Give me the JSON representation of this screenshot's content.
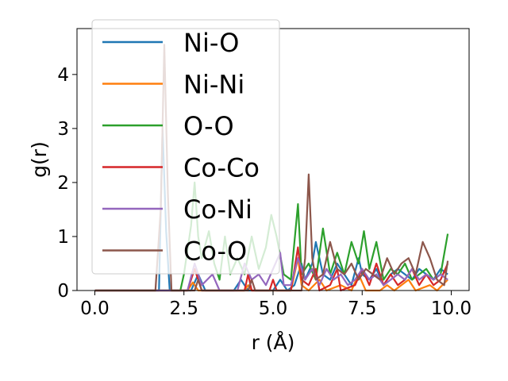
{
  "chart_data": {
    "type": "line",
    "xlabel": "r (Å)",
    "ylabel": "g(r)",
    "xlim": [
      -0.5,
      10.5
    ],
    "ylim": [
      0,
      4.85
    ],
    "xticks": [
      0.0,
      2.5,
      5.0,
      7.5,
      10.0
    ],
    "xtick_labels": [
      "0.0",
      "2.5",
      "5.0",
      "7.5",
      "10.0"
    ],
    "yticks": [
      0,
      1,
      2,
      3,
      4
    ],
    "ytick_labels": [
      "0",
      "1",
      "2",
      "3",
      "4"
    ],
    "legend_position": "upper-left",
    "grid": false,
    "series": [
      {
        "name": "Ni-O",
        "color": "#1f77b4",
        "points": [
          [
            0,
            0
          ],
          [
            1.5,
            0
          ],
          [
            1.8,
            0
          ],
          [
            1.9,
            3.0
          ],
          [
            2.0,
            1.1
          ],
          [
            2.1,
            0
          ],
          [
            2.7,
            0
          ],
          [
            2.9,
            0.3
          ],
          [
            3.1,
            0
          ],
          [
            3.9,
            0
          ],
          [
            4.1,
            0.2
          ],
          [
            4.3,
            0
          ],
          [
            5.0,
            0
          ],
          [
            5.2,
            0.2
          ],
          [
            5.4,
            0
          ],
          [
            5.6,
            0.1
          ],
          [
            5.8,
            0.5
          ],
          [
            5.9,
            0.2
          ],
          [
            6.1,
            0.5
          ],
          [
            6.2,
            0.9
          ],
          [
            6.4,
            0.3
          ],
          [
            6.6,
            0.2
          ],
          [
            6.8,
            0.5
          ],
          [
            7.0,
            0.3
          ],
          [
            7.2,
            0.1
          ],
          [
            7.4,
            0.6
          ],
          [
            7.5,
            0.3
          ],
          [
            7.7,
            0.2
          ],
          [
            7.9,
            0.4
          ],
          [
            8.1,
            0.1
          ],
          [
            8.3,
            0.3
          ],
          [
            8.5,
            0.4
          ],
          [
            8.7,
            0.3
          ],
          [
            8.9,
            0.2
          ],
          [
            9.1,
            0.4
          ],
          [
            9.3,
            0.3
          ],
          [
            9.5,
            0.2
          ],
          [
            9.7,
            0.4
          ],
          [
            9.9,
            0.3
          ]
        ]
      },
      {
        "name": "Ni-Ni",
        "color": "#ff7f0e",
        "points": [
          [
            0,
            0
          ],
          [
            2.6,
            0
          ],
          [
            2.75,
            0.15
          ],
          [
            2.9,
            0
          ],
          [
            4.2,
            0
          ],
          [
            4.3,
            0.1
          ],
          [
            4.4,
            0
          ],
          [
            5.5,
            0
          ],
          [
            5.7,
            0.6
          ],
          [
            5.8,
            0.1
          ],
          [
            6.0,
            0
          ],
          [
            6.3,
            0.2
          ],
          [
            6.5,
            0
          ],
          [
            6.9,
            0.1
          ],
          [
            7.2,
            0
          ],
          [
            7.4,
            0.3
          ],
          [
            7.6,
            0
          ],
          [
            8.0,
            0
          ],
          [
            8.2,
            0.1
          ],
          [
            8.4,
            0
          ],
          [
            8.8,
            0.2
          ],
          [
            9.0,
            0
          ],
          [
            9.4,
            0.1
          ],
          [
            9.6,
            0
          ],
          [
            9.9,
            0.2
          ]
        ]
      },
      {
        "name": "O-O",
        "color": "#2ca02c",
        "points": [
          [
            0,
            0
          ],
          [
            2.4,
            0
          ],
          [
            2.5,
            0.3
          ],
          [
            2.7,
            1.2
          ],
          [
            2.8,
            2.0
          ],
          [
            2.9,
            1.0
          ],
          [
            3.0,
            0.6
          ],
          [
            3.2,
            1.1
          ],
          [
            3.35,
            0.5
          ],
          [
            3.5,
            0.2
          ],
          [
            3.65,
            1.0
          ],
          [
            3.8,
            0.3
          ],
          [
            4.0,
            0.6
          ],
          [
            4.2,
            0.3
          ],
          [
            4.4,
            1.0
          ],
          [
            4.6,
            0.4
          ],
          [
            4.8,
            0.8
          ],
          [
            4.95,
            1.4
          ],
          [
            5.1,
            1.0
          ],
          [
            5.3,
            0.3
          ],
          [
            5.5,
            0.2
          ],
          [
            5.7,
            1.6
          ],
          [
            5.8,
            0.3
          ],
          [
            6.0,
            0.5
          ],
          [
            6.2,
            0.2
          ],
          [
            6.4,
            1.15
          ],
          [
            6.6,
            0.3
          ],
          [
            6.8,
            0.7
          ],
          [
            7.0,
            0.3
          ],
          [
            7.2,
            0.9
          ],
          [
            7.4,
            0.5
          ],
          [
            7.55,
            1.1
          ],
          [
            7.7,
            0.4
          ],
          [
            7.9,
            0.9
          ],
          [
            8.1,
            0.2
          ],
          [
            8.3,
            0.4
          ],
          [
            8.5,
            0.3
          ],
          [
            8.7,
            0.5
          ],
          [
            8.9,
            0.2
          ],
          [
            9.1,
            0.3
          ],
          [
            9.3,
            0.4
          ],
          [
            9.5,
            0.2
          ],
          [
            9.7,
            0.3
          ],
          [
            9.9,
            1.05
          ]
        ]
      },
      {
        "name": "Co-Co",
        "color": "#d62728",
        "points": [
          [
            0,
            0
          ],
          [
            2.6,
            0
          ],
          [
            2.8,
            0.4
          ],
          [
            3.0,
            0
          ],
          [
            4.2,
            0
          ],
          [
            4.3,
            0.3
          ],
          [
            4.4,
            0
          ],
          [
            4.9,
            0
          ],
          [
            5.0,
            0.2
          ],
          [
            5.1,
            0
          ],
          [
            5.5,
            0
          ],
          [
            5.7,
            0.8
          ],
          [
            5.8,
            0.2
          ],
          [
            6.0,
            0.1
          ],
          [
            6.2,
            0.4
          ],
          [
            6.3,
            0
          ],
          [
            6.6,
            0.1
          ],
          [
            6.8,
            0.4
          ],
          [
            6.9,
            0
          ],
          [
            7.3,
            0.1
          ],
          [
            7.5,
            0.4
          ],
          [
            7.7,
            0.1
          ],
          [
            7.9,
            0.5
          ],
          [
            8.1,
            0.1
          ],
          [
            8.3,
            0.3
          ],
          [
            8.5,
            0.1
          ],
          [
            8.7,
            0.2
          ],
          [
            8.9,
            0.4
          ],
          [
            9.1,
            0.1
          ],
          [
            9.3,
            0.3
          ],
          [
            9.5,
            0.1
          ],
          [
            9.7,
            0.2
          ],
          [
            9.9,
            0.5
          ]
        ]
      },
      {
        "name": "Co-Ni",
        "color": "#9467bd",
        "points": [
          [
            0,
            0
          ],
          [
            2.6,
            0
          ],
          [
            2.8,
            0.5
          ],
          [
            3.0,
            0.1
          ],
          [
            3.3,
            0.3
          ],
          [
            3.5,
            0
          ],
          [
            4.0,
            0
          ],
          [
            4.2,
            0.5
          ],
          [
            4.4,
            0.2
          ],
          [
            4.6,
            0.3
          ],
          [
            4.8,
            0.1
          ],
          [
            5.0,
            0.4
          ],
          [
            5.2,
            0.7
          ],
          [
            5.3,
            0.1
          ],
          [
            5.5,
            0.1
          ],
          [
            5.7,
            0.6
          ],
          [
            5.9,
            0.2
          ],
          [
            6.1,
            0.4
          ],
          [
            6.3,
            0.1
          ],
          [
            6.5,
            0.4
          ],
          [
            6.7,
            0.2
          ],
          [
            6.9,
            0.3
          ],
          [
            7.1,
            0.1
          ],
          [
            7.3,
            0.2
          ],
          [
            7.5,
            0.4
          ],
          [
            7.7,
            0.2
          ],
          [
            7.9,
            0.3
          ],
          [
            8.1,
            0.1
          ],
          [
            8.3,
            0.2
          ],
          [
            8.5,
            0.3
          ],
          [
            8.7,
            0.2
          ],
          [
            8.9,
            0.4
          ],
          [
            9.1,
            0.2
          ],
          [
            9.3,
            0.3
          ],
          [
            9.5,
            0.2
          ],
          [
            9.7,
            0.3
          ],
          [
            9.9,
            0.2
          ]
        ]
      },
      {
        "name": "Co-O",
        "color": "#8c564b",
        "points": [
          [
            0,
            0
          ],
          [
            1.5,
            0
          ],
          [
            1.7,
            0
          ],
          [
            1.85,
            1.5
          ],
          [
            1.95,
            4.55
          ],
          [
            2.05,
            1.8
          ],
          [
            2.15,
            0
          ],
          [
            2.8,
            0
          ],
          [
            2.9,
            0.2
          ],
          [
            3.0,
            0
          ],
          [
            4.3,
            0
          ],
          [
            4.4,
            0.2
          ],
          [
            4.5,
            0
          ],
          [
            5.8,
            0
          ],
          [
            5.9,
            0.6
          ],
          [
            6.0,
            2.15
          ],
          [
            6.1,
            0.6
          ],
          [
            6.2,
            0.2
          ],
          [
            6.4,
            0.3
          ],
          [
            6.6,
            0.9
          ],
          [
            6.8,
            0.4
          ],
          [
            7.0,
            0.3
          ],
          [
            7.2,
            0.5
          ],
          [
            7.4,
            0.2
          ],
          [
            7.6,
            0.4
          ],
          [
            7.8,
            0.3
          ],
          [
            8.0,
            0.2
          ],
          [
            8.2,
            0.6
          ],
          [
            8.4,
            0.3
          ],
          [
            8.6,
            0.5
          ],
          [
            8.8,
            0.6
          ],
          [
            9.0,
            0.3
          ],
          [
            9.2,
            0.9
          ],
          [
            9.4,
            0.6
          ],
          [
            9.6,
            0.2
          ],
          [
            9.8,
            0.1
          ],
          [
            9.9,
            0.55
          ]
        ]
      }
    ]
  }
}
